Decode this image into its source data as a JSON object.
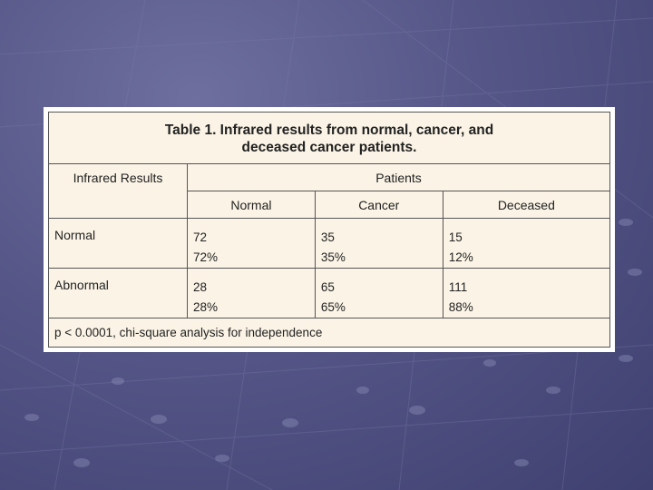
{
  "table": {
    "title_line1": "Table 1. Infrared results from normal, cancer, and",
    "title_line2": "deceased cancer patients.",
    "row_header": "Infrared Results",
    "group_header": "Patients",
    "columns": [
      "Normal",
      "Cancer",
      "Deceased"
    ],
    "rows": [
      {
        "label": "Normal",
        "cells": [
          {
            "count": "72",
            "percent": "72%"
          },
          {
            "count": "35",
            "percent": "35%"
          },
          {
            "count": "15",
            "percent": "12%"
          }
        ]
      },
      {
        "label": "Abnormal",
        "cells": [
          {
            "count": "28",
            "percent": "28%"
          },
          {
            "count": "65",
            "percent": "65%"
          },
          {
            "count": "111",
            "percent": "88%"
          }
        ]
      }
    ],
    "footnote": "p < 0.0001, chi-square analysis for independence"
  },
  "colors": {
    "background": "#555687",
    "table_fill": "#fbf4e6",
    "frame": "#ffffff"
  }
}
